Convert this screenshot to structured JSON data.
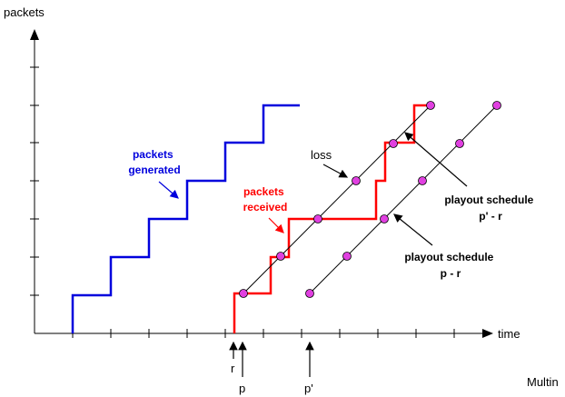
{
  "axes": {
    "y_label": "packets",
    "x_label": "time"
  },
  "labels": {
    "packets_generated": [
      "packets",
      "generated"
    ],
    "packets_received": [
      "packets",
      "received"
    ],
    "loss": "loss",
    "playout_schedule_p_prime": [
      "playout schedule",
      "p' - r"
    ],
    "playout_schedule_p": [
      "playout schedule",
      "p - r"
    ],
    "tick_r": "r",
    "tick_p": "p",
    "tick_p_prime": "p'",
    "footer": "Multin"
  },
  "colors": {
    "generated": "#0000dd",
    "received": "#ff0000",
    "point": "#e040e0",
    "axis": "#000000"
  }
}
